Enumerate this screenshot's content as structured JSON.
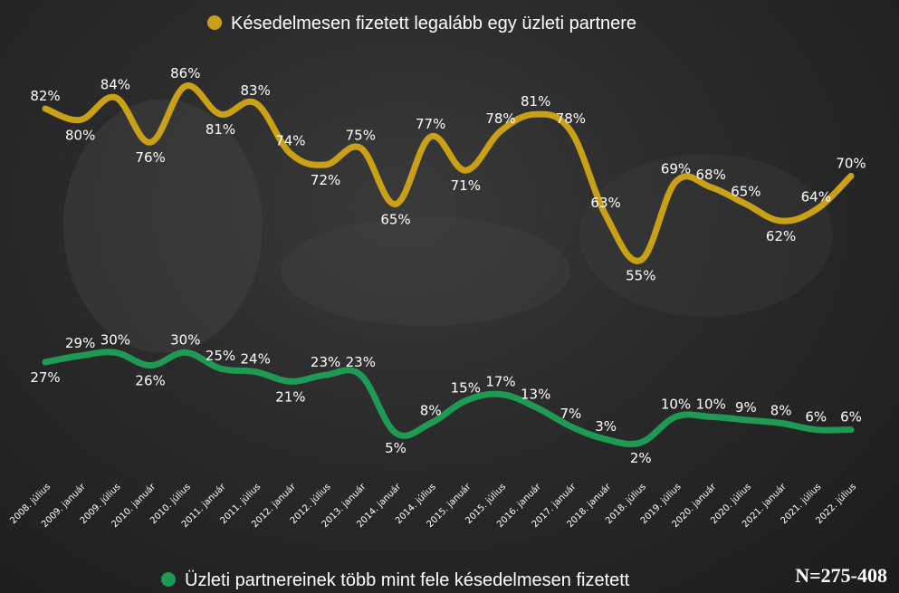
{
  "chart_data": {
    "type": "line",
    "categories": [
      "2008. július",
      "2009. január",
      "2009. július",
      "2010. január",
      "2010. július",
      "2011. január",
      "2011. július",
      "2012. január",
      "2012. július",
      "2013. január",
      "2014. január",
      "2014. július",
      "2015. január",
      "2015. július",
      "2016. január",
      "2017. január",
      "2018. január",
      "2018. július",
      "2019. július",
      "2020. január",
      "2020. július",
      "2021. január",
      "2021. július",
      "2022. július"
    ],
    "series": [
      {
        "name": "Késedelmesen fizetett legalább egy üzleti partnere",
        "color": "#c9a016",
        "values": [
          82,
          80,
          84,
          76,
          86,
          81,
          83,
          74,
          72,
          75,
          65,
          77,
          71,
          78,
          81,
          78,
          63,
          55,
          69,
          68,
          65,
          62,
          64,
          70
        ],
        "labels": [
          "82%",
          "80%",
          "84%",
          "76%",
          "86%",
          "81%",
          "83%",
          "74%",
          "72%",
          "75%",
          "65%",
          "77%",
          "71%",
          "78%",
          "81%",
          "78%",
          "63%",
          "55%",
          "69%",
          "68%",
          "65%",
          "62%",
          "64%",
          "70%"
        ]
      },
      {
        "name": "Üzleti partnereinek több mint fele késedelmesen fizetett",
        "color": "#1f9a55",
        "values": [
          27,
          29,
          30,
          26,
          30,
          25,
          24,
          21,
          23,
          23,
          5,
          8,
          15,
          17,
          13,
          7,
          3,
          2,
          10,
          10,
          9,
          8,
          6,
          6
        ],
        "labels": [
          "27%",
          "29%",
          "30%",
          "26%",
          "30%",
          "25%",
          "24%",
          "21%",
          "23%",
          "23%",
          "5%",
          "8%",
          "15%",
          "17%",
          "13%",
          "7%",
          "3%",
          "2%",
          "10%",
          "10%",
          "9%",
          "8%",
          "6%",
          "6%"
        ]
      }
    ],
    "legend_position": "top and bottom",
    "grid": false,
    "note": "N=275-408"
  }
}
